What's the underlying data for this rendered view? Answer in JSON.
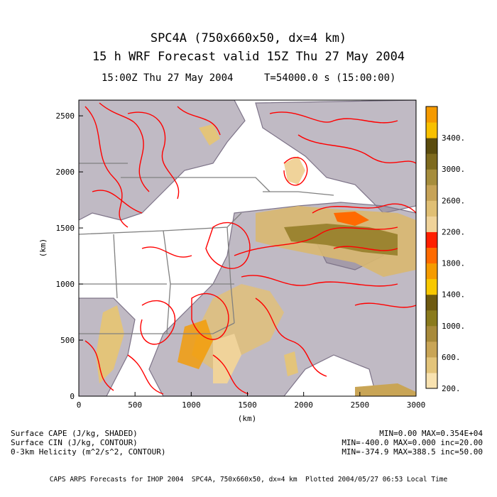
{
  "header": {
    "title_line1": "SPC4A (750x660x50, dx=4 km)",
    "title_line2": "15 h WRF Forecast valid 15Z Thu 27 May 2004",
    "time_label": "15:00Z Thu 27 May 2004",
    "t_label": "T=54000.0 s (15:00:00)"
  },
  "map": {
    "x_axis_label": "(km)",
    "y_axis_label": "(km)",
    "x_ticks": [
      "0",
      "500",
      "1000",
      "1500",
      "2000",
      "2500",
      "3000"
    ],
    "y_ticks": [
      "0",
      "500",
      "1000",
      "1500",
      "2000",
      "2500"
    ],
    "x_range_km": [
      0,
      3000
    ],
    "y_range_km": [
      0,
      2640
    ]
  },
  "colorbar": {
    "labels": [
      "200.",
      "600.",
      "1000.",
      "1400.",
      "1800.",
      "2200.",
      "2600.",
      "3000.",
      "3400."
    ],
    "colors": [
      "#f8e2b0",
      "#e3c47a",
      "#c9a556",
      "#a88a3a",
      "#8a7a1c",
      "#6e5a10",
      "#f8c800",
      "#f59b00",
      "#ff6a00",
      "#ff1f00",
      "#f0d39a",
      "#e0bf74",
      "#c7a357",
      "#a68d3c",
      "#7e6a1e",
      "#5b4c0e",
      "#f8c000",
      "#f59a00"
    ]
  },
  "footer": {
    "legend_cape": "Surface CAPE (J/kg, SHADED)",
    "legend_cin": "Surface CIN (J/kg, CONTOUR)",
    "legend_helicity": "0-3km Helicity (m^2/s^2, CONTOUR)",
    "stats_cape": "MIN=0.00 MAX=0.354E+04",
    "stats_cin": "MIN=-400.0 MAX=0.000 inc=20.00",
    "stats_helicity": "MIN=-374.9 MAX=388.5 inc=50.00",
    "credits": "CAPS ARPS Forecasts for IHOP 2004  SPC4A, 750x660x50, dx=4 km  Plotted 2004/05/27 06:53 Local Time"
  }
}
